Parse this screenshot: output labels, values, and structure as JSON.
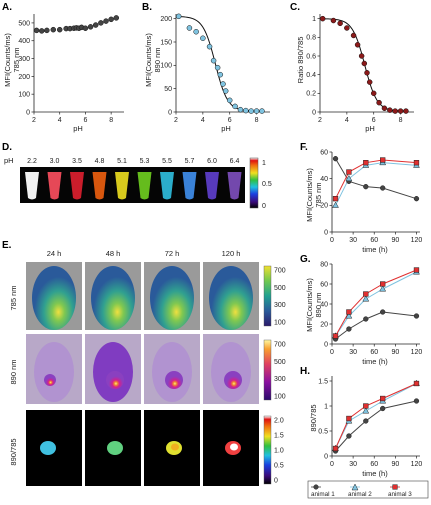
{
  "panels": {
    "A": {
      "label": "A.",
      "ylabel": [
        "MFI(Counts/ms)",
        "785 nm"
      ],
      "xlabel": "pH"
    },
    "B": {
      "label": "B.",
      "ylabel": [
        "MFI(Counts/ms)",
        "890 nm"
      ],
      "xlabel": "pH"
    },
    "C": {
      "label": "C.",
      "ylabel": [
        "Ratio 890/785"
      ],
      "xlabel": "pH"
    },
    "D": {
      "label": "D.",
      "row_label": "pH",
      "ph_values": [
        "2.2",
        "3.0",
        "3.5",
        "4.8",
        "5.1",
        "5.3",
        "5.5",
        "5.7",
        "6.0",
        "6.4"
      ],
      "colorbar_ticks": [
        "1",
        "0.5",
        "0"
      ]
    },
    "E": {
      "label": "E.",
      "time_labels": [
        "24 h",
        "48 h",
        "72 h",
        "120 h"
      ],
      "row_labels": [
        "785 nm",
        "890 nm",
        "890/785"
      ],
      "cb785": [
        "700",
        "500",
        "300",
        "100"
      ],
      "cb890": [
        "700",
        "500",
        "300",
        "100"
      ],
      "cbratio": [
        "2.0",
        "1.5",
        "1.0",
        "0.5",
        "0"
      ]
    },
    "F": {
      "label": "F.",
      "ylabel": [
        "MFI(Counts/ms)",
        "785 nm"
      ],
      "xlabel": "time (h)"
    },
    "G": {
      "label": "G.",
      "ylabel": [
        "MFI(Counts/ms)",
        "890 nm"
      ],
      "xlabel": "time (h)"
    },
    "H": {
      "label": "H.",
      "ylabel": [
        "890/785"
      ],
      "xlabel": "time (h)"
    }
  },
  "legend": {
    "animal1": "animal 1",
    "animal2": "animal 2",
    "animal3": "animal 3"
  },
  "colors": {
    "marker_black": "#444444",
    "marker_blue": "#7fc3e0",
    "marker_red": "#e03030",
    "marker_darkred": "#8b1a1a"
  },
  "chart_data": [
    {
      "id": "A",
      "type": "scatter",
      "xlabel": "pH",
      "ylabel": "MFI(Counts/ms) 785 nm",
      "xlim": [
        2,
        9
      ],
      "ylim": [
        0,
        550
      ],
      "xticks": [
        2,
        4,
        6,
        8
      ],
      "yticks": [
        0,
        100,
        200,
        300,
        400,
        500
      ],
      "x": [
        2.2,
        2.6,
        3.0,
        3.5,
        4.0,
        4.5,
        4.8,
        5.1,
        5.3,
        5.5,
        5.7,
        6.0,
        6.4,
        6.8,
        7.2,
        7.6,
        8.0,
        8.4
      ],
      "y": [
        458,
        455,
        458,
        462,
        462,
        468,
        468,
        470,
        472,
        470,
        475,
        470,
        478,
        488,
        500,
        510,
        520,
        528
      ]
    },
    {
      "id": "B",
      "type": "scatter",
      "xlabel": "pH",
      "ylabel": "MFI(Counts/ms) 890 nm",
      "xlim": [
        2,
        9
      ],
      "ylim": [
        0,
        210
      ],
      "xticks": [
        2,
        4,
        6,
        8
      ],
      "yticks": [
        0,
        50,
        100,
        150,
        200
      ],
      "x": [
        2.2,
        3.0,
        3.5,
        4.0,
        4.5,
        4.8,
        5.1,
        5.3,
        5.5,
        5.7,
        6.0,
        6.4,
        6.8,
        7.2,
        7.6,
        8.0,
        8.4
      ],
      "y": [
        205,
        180,
        172,
        158,
        140,
        110,
        95,
        80,
        60,
        45,
        25,
        12,
        5,
        3,
        2,
        2,
        2
      ],
      "fit": "sigmoid"
    },
    {
      "id": "C",
      "type": "scatter",
      "xlabel": "pH",
      "ylabel": "Ratio 890/785",
      "xlim": [
        2,
        9
      ],
      "ylim": [
        0,
        1.05
      ],
      "xticks": [
        2,
        4,
        6,
        8
      ],
      "yticks": [
        0,
        0.2,
        0.4,
        0.6,
        0.8,
        1.0
      ],
      "x": [
        2.2,
        3.0,
        3.5,
        4.0,
        4.5,
        4.8,
        5.1,
        5.3,
        5.5,
        5.7,
        6.0,
        6.4,
        6.8,
        7.2,
        7.6,
        8.0,
        8.4
      ],
      "y": [
        1.0,
        0.98,
        0.95,
        0.9,
        0.82,
        0.72,
        0.6,
        0.52,
        0.42,
        0.32,
        0.2,
        0.1,
        0.04,
        0.02,
        0.01,
        0.01,
        0.01
      ],
      "fit": "sigmoid"
    },
    {
      "id": "F",
      "type": "line",
      "xlabel": "time (h)",
      "ylabel": "MFI(Counts/ms) 785 nm",
      "xlim": [
        0,
        125
      ],
      "ylim": [
        0,
        60
      ],
      "xticks": [
        0,
        30,
        60,
        90,
        120
      ],
      "yticks": [
        0,
        20,
        40,
        60
      ],
      "x": [
        5,
        24,
        48,
        72,
        120
      ],
      "series": [
        {
          "name": "animal 1",
          "values": [
            55,
            38,
            34,
            33,
            25
          ]
        },
        {
          "name": "animal 2",
          "values": [
            20,
            40,
            50,
            52,
            50
          ]
        },
        {
          "name": "animal 3",
          "values": [
            25,
            45,
            52,
            54,
            52
          ]
        }
      ]
    },
    {
      "id": "G",
      "type": "line",
      "xlabel": "time (h)",
      "ylabel": "MFI(Counts/ms) 890 nm",
      "xlim": [
        0,
        125
      ],
      "ylim": [
        0,
        80
      ],
      "xticks": [
        0,
        30,
        60,
        90,
        120
      ],
      "yticks": [
        0,
        20,
        40,
        60,
        80
      ],
      "x": [
        5,
        24,
        48,
        72,
        120
      ],
      "series": [
        {
          "name": "animal 1",
          "values": [
            5,
            15,
            25,
            32,
            28
          ]
        },
        {
          "name": "animal 2",
          "values": [
            8,
            28,
            45,
            55,
            72
          ]
        },
        {
          "name": "animal 3",
          "values": [
            8,
            32,
            50,
            60,
            74
          ]
        }
      ]
    },
    {
      "id": "H",
      "type": "line",
      "xlabel": "time (h)",
      "ylabel": "890/785",
      "xlim": [
        0,
        125
      ],
      "ylim": [
        0,
        1.6
      ],
      "xticks": [
        0,
        30,
        60,
        90,
        120
      ],
      "yticks": [
        0,
        0.5,
        1.0,
        1.5
      ],
      "x": [
        5,
        24,
        48,
        72,
        120
      ],
      "series": [
        {
          "name": "animal 1",
          "values": [
            0.1,
            0.4,
            0.7,
            0.95,
            1.1
          ]
        },
        {
          "name": "animal 2",
          "values": [
            0.15,
            0.7,
            0.9,
            1.1,
            1.45
          ]
        },
        {
          "name": "animal 3",
          "values": [
            0.15,
            0.75,
            1.0,
            1.15,
            1.45
          ]
        }
      ]
    }
  ]
}
